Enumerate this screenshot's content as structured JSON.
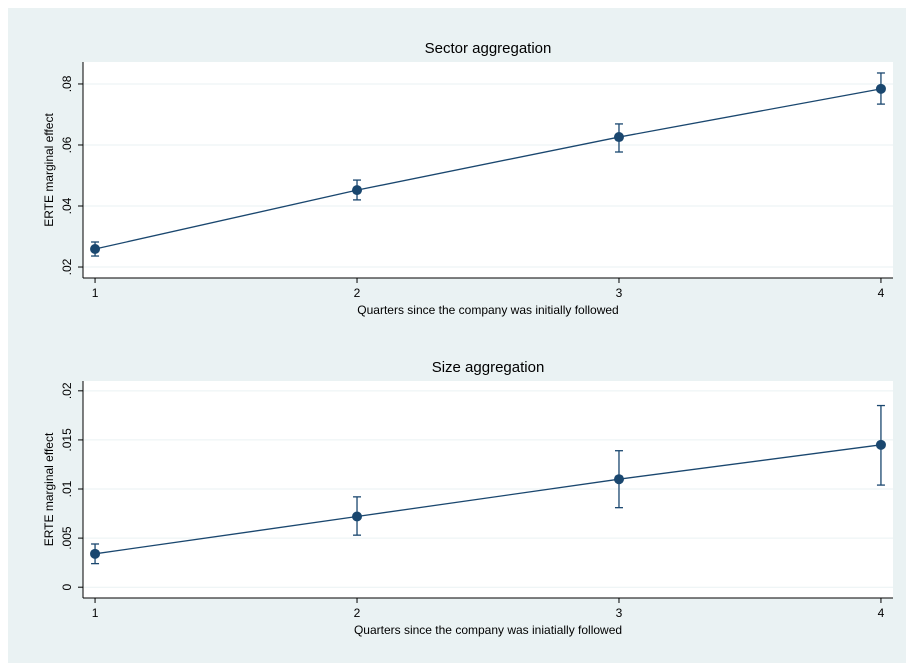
{
  "chart_data": [
    {
      "type": "line",
      "title": "Sector aggregation",
      "y_label": "ERTE marginal effect",
      "x_label": "Quarters since the company was initially followed",
      "x": [
        1,
        2,
        3,
        4
      ],
      "values": [
        0.0259,
        0.0452,
        0.0626,
        0.0784
      ],
      "ci_lower": [
        0.0236,
        0.042,
        0.0577,
        0.0734
      ],
      "ci_upper": [
        0.0282,
        0.0485,
        0.0669,
        0.0836
      ],
      "color": "#1a476f",
      "xlim": [
        0.954,
        4.046
      ],
      "xticks": [
        1,
        2,
        3,
        4
      ],
      "ylim": [
        0.0164,
        0.0872
      ],
      "yticks": [
        {
          "value": 0.02,
          "label": ".02"
        },
        {
          "value": 0.04,
          "label": ".04"
        },
        {
          "value": 0.06,
          "label": ".06"
        },
        {
          "value": 0.08,
          "label": ".08"
        }
      ],
      "grid": true
    },
    {
      "type": "line",
      "title": "Size aggregation",
      "y_label": "ERTE marginal effect",
      "x_label": "Quarters since the company was iniatially followed",
      "x": [
        1,
        2,
        3,
        4
      ],
      "values": [
        0.0034,
        0.0072,
        0.011,
        0.0145
      ],
      "ci_lower": [
        0.0024,
        0.0053,
        0.0081,
        0.0104
      ],
      "ci_upper": [
        0.0044,
        0.0092,
        0.0139,
        0.0185
      ],
      "color": "#1a476f",
      "xlim": [
        0.954,
        4.046
      ],
      "xticks": [
        1,
        2,
        3,
        4
      ],
      "ylim": [
        -0.0011,
        0.021
      ],
      "yticks": [
        0,
        {
          "value": 0.005,
          "label": ".005"
        },
        {
          "value": 0.01,
          "label": ".01"
        },
        {
          "value": 0.015,
          "label": ".015"
        },
        {
          "value": 0.02,
          "label": ".02"
        }
      ],
      "grid": true
    }
  ]
}
